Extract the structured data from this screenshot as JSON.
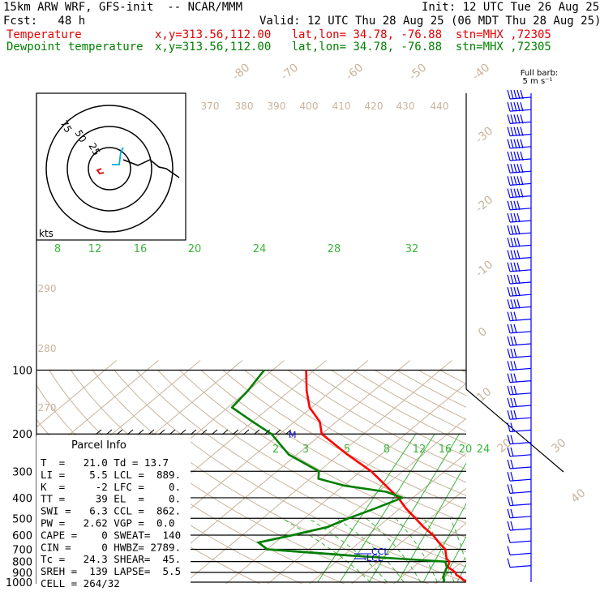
{
  "header": {
    "model_line": "15km ARW WRF, GFS-init  -- NCAR/MMM",
    "init_line": "Init: 12 UTC Tue 26 Aug 25",
    "fcst_line": "Fcst:   48 h",
    "valid_line": "Valid: 12 UTC Thu 28 Aug 25 (06 MDT Thu 28 Aug 25)",
    "temp_line_label": "Temperature",
    "temp_line_info": "x,y=313.56,112.00   lat,lon= 34.78, -76.88  stn=MHX ,72305",
    "dew_line_label": "Dewpoint temperature",
    "dew_line_info": "x,y=313.56,112.00   lat,lon= 34.78, -76.88  stn=MHX ,72305"
  },
  "barb_legend": {
    "line1": "Full barb:",
    "line2": "5 m s⁻¹"
  },
  "hodograph": {
    "rings": [
      "75",
      "50",
      "25"
    ],
    "units": "kts"
  },
  "parcel_info": {
    "title": "Parcel Info",
    "rows": [
      "T  =   21.0 Td = 13.7",
      "LI =    5.5 LCL =  889.",
      "K  =     -2 LFC =    0.",
      "TT =     39 EL  =    0.",
      "SWI =   6.3 CCL =  862.",
      "PW =   2.62 VGP =  0.0",
      "CAPE =    0 SWEAT=  140",
      "CIN =     0 HWBZ= 2789.",
      "Tc =   24.3 SHEAR=  45.",
      "SREH =  139 LAPSE=  5.5",
      "CELL = 264/32"
    ]
  },
  "level_markers": {
    "ccl": "CCL",
    "lcl": "LCL",
    "el": "M"
  },
  "chart_data": {
    "type": "line",
    "title": "",
    "yscale": "log-pressure",
    "ylabel": "",
    "xlabel": "",
    "ylim": [
      1000,
      100
    ],
    "pressure_ticks": [
      "100",
      "200",
      "300",
      "400",
      "500",
      "600",
      "700",
      "800",
      "900",
      "1000"
    ],
    "isotherm_labels": [
      "-80",
      "-70",
      "-60",
      "-50",
      "-40",
      "-30",
      "-20",
      "-10",
      "0",
      "10",
      "20",
      "30",
      "40"
    ],
    "theta_labels_top": [
      "370",
      "380",
      "390",
      "400",
      "410",
      "420",
      "430",
      "440"
    ],
    "theta_labels_left": [
      "290",
      "280",
      "270"
    ],
    "mixing_ratio_upper": [
      "8",
      "12",
      "16",
      "20",
      "24",
      "28",
      "32"
    ],
    "mixing_ratio_lower": [
      "2",
      "3",
      "5",
      "8",
      "12",
      "16",
      "20",
      "24"
    ],
    "series": [
      {
        "name": "Temperature",
        "color": "#ff0000",
        "points": [
          [
            999,
            27.5
          ],
          [
            975,
            25.5
          ],
          [
            950,
            24.2
          ],
          [
            925,
            22.5
          ],
          [
            900,
            21.5
          ],
          [
            875,
            20.0
          ],
          [
            850,
            18.2
          ],
          [
            800,
            17.0
          ],
          [
            775,
            15.5
          ],
          [
            750,
            14.5
          ],
          [
            700,
            12.5
          ],
          [
            650,
            9.0
          ],
          [
            600,
            5.5
          ],
          [
            550,
            1.0
          ],
          [
            500,
            -3.5
          ],
          [
            450,
            -8.5
          ],
          [
            400,
            -13.5
          ],
          [
            350,
            -20.0
          ],
          [
            300,
            -27.5
          ],
          [
            250,
            -38.0
          ],
          [
            200,
            -50.0
          ],
          [
            175,
            -54.0
          ],
          [
            150,
            -60.5
          ],
          [
            125,
            -66.0
          ],
          [
            100,
            -72.0
          ]
        ]
      },
      {
        "name": "Dewpoint temperature",
        "color": "#008000",
        "points": [
          [
            999,
            21.5
          ],
          [
            975,
            21.0
          ],
          [
            950,
            20.0
          ],
          [
            925,
            19.5
          ],
          [
            900,
            19.0
          ],
          [
            875,
            18.5
          ],
          [
            850,
            18.0
          ],
          [
            800,
            16.0
          ],
          [
            750,
            -8.0
          ],
          [
            700,
            -30.0
          ],
          [
            650,
            -34.0
          ],
          [
            600,
            -28.0
          ],
          [
            550,
            -22.0
          ],
          [
            500,
            -19.5
          ],
          [
            450,
            -16.0
          ],
          [
            400,
            -12.5
          ],
          [
            375,
            -18.0
          ],
          [
            350,
            -30.0
          ],
          [
            325,
            -38.0
          ],
          [
            300,
            -40.0
          ],
          [
            250,
            -52.0
          ],
          [
            200,
            -62.0
          ],
          [
            175,
            -70.0
          ],
          [
            150,
            -79.0
          ],
          [
            125,
            -80.0
          ],
          [
            100,
            -82.0
          ]
        ]
      }
    ],
    "wind_barbs_ms": [
      [
        1000,
        180,
        7
      ],
      [
        975,
        190,
        9
      ],
      [
        950,
        200,
        10
      ],
      [
        925,
        210,
        11
      ],
      [
        900,
        220,
        11
      ],
      [
        875,
        230,
        10
      ],
      [
        850,
        240,
        10
      ],
      [
        800,
        250,
        10
      ],
      [
        750,
        260,
        11
      ],
      [
        700,
        265,
        12
      ],
      [
        650,
        265,
        13
      ],
      [
        600,
        265,
        14
      ],
      [
        550,
        265,
        15
      ],
      [
        500,
        265,
        16
      ],
      [
        450,
        265,
        17
      ],
      [
        400,
        265,
        18
      ],
      [
        350,
        265,
        20
      ],
      [
        300,
        265,
        22
      ],
      [
        250,
        265,
        25
      ],
      [
        200,
        265,
        28
      ],
      [
        175,
        265,
        30
      ],
      [
        150,
        265,
        32
      ],
      [
        125,
        265,
        35
      ],
      [
        100,
        265,
        40
      ]
    ]
  }
}
